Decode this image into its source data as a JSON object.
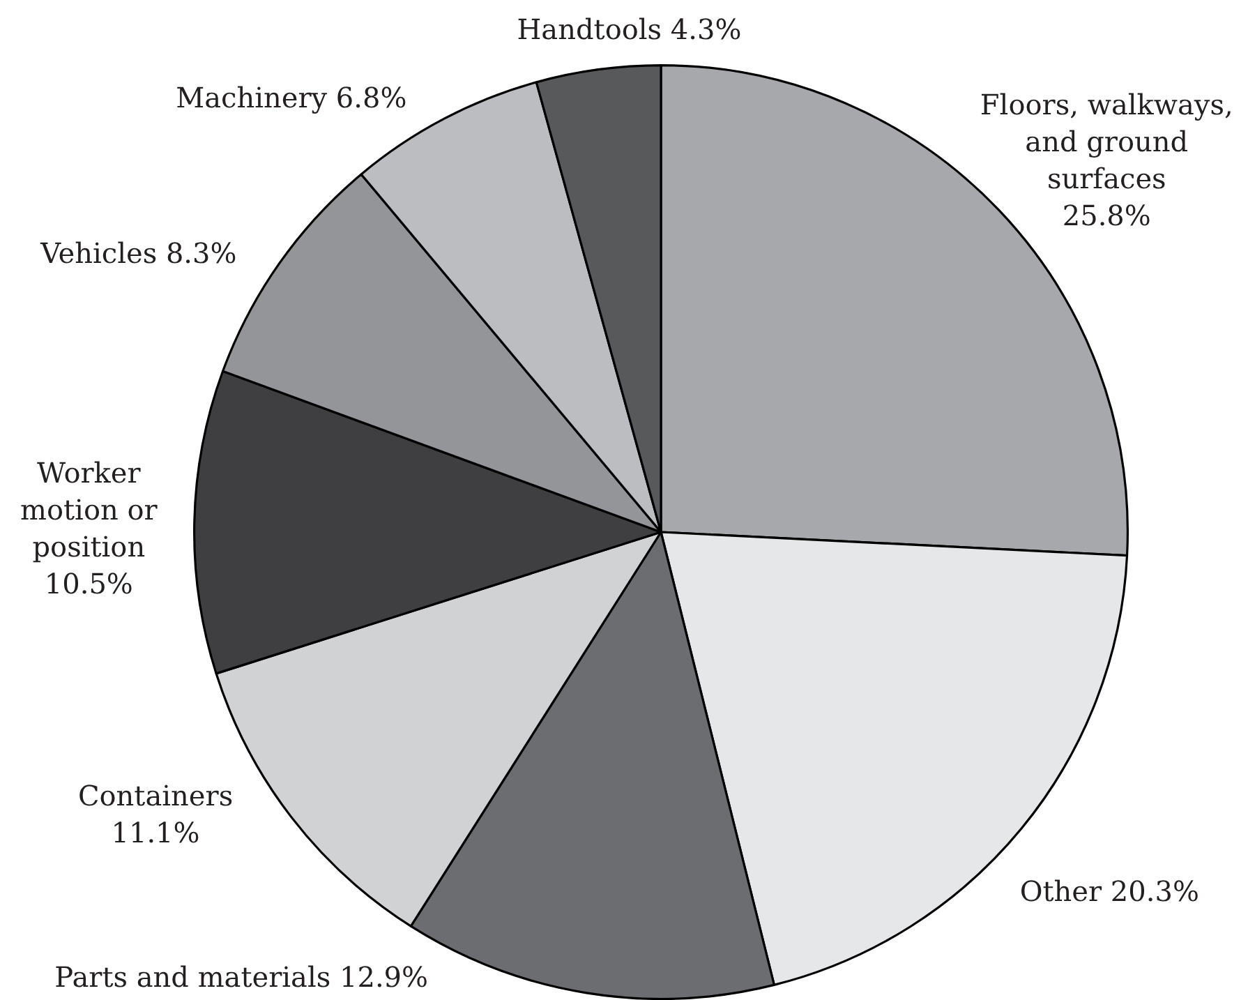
{
  "chart_data": {
    "type": "pie",
    "categories": [
      "Floors, walkways, and ground surfaces",
      "Other",
      "Parts and materials",
      "Containers",
      "Worker motion or position",
      "Vehicles",
      "Machinery",
      "Handtools"
    ],
    "values": [
      25.8,
      20.3,
      12.9,
      11.1,
      10.5,
      8.3,
      6.8,
      4.3
    ],
    "colors": [
      "#a7a8ab",
      "#e6e7e8",
      "#6c6d70",
      "#d1d2d4",
      "#3f3e40",
      "#939598",
      "#bbbdc0",
      "#58595b"
    ],
    "value_labels": [
      "25.8%",
      "20.3%",
      "12.9%",
      "11.1%",
      "10.5%",
      "8.3%",
      "6.8%",
      "4.3%"
    ]
  }
}
